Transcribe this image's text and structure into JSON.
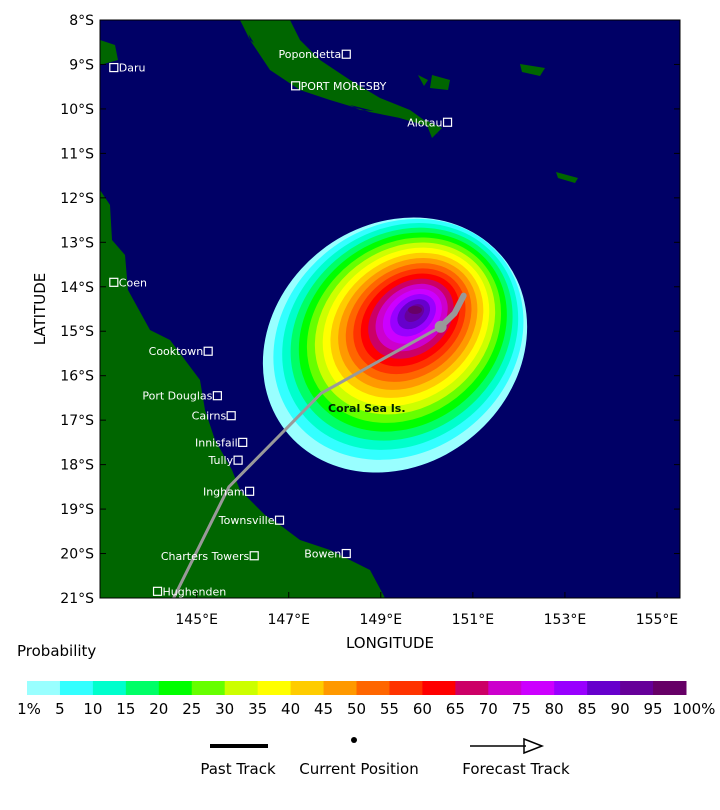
{
  "map": {
    "xlabel": "LONGITUDE",
    "ylabel": "LATITUDE",
    "lon_ticks": [
      "145°E",
      "147°E",
      "149°E",
      "151°E",
      "153°E",
      "155°E"
    ],
    "lon_values": [
      145,
      147,
      149,
      151,
      153,
      155
    ],
    "lat_ticks": [
      "8°S",
      "9°S",
      "10°S",
      "11°S",
      "12°S",
      "13°S",
      "14°S",
      "15°S",
      "16°S",
      "17°S",
      "18°S",
      "19°S",
      "20°S",
      "21°S"
    ],
    "lat_values": [
      8,
      9,
      10,
      11,
      12,
      13,
      14,
      15,
      16,
      17,
      18,
      19,
      20,
      21
    ],
    "lon_range": [
      142.9,
      155.5
    ],
    "lat_range": [
      8,
      21
    ],
    "ocean_color": "#000066",
    "land_color": "#006600",
    "places": [
      {
        "name": "Daru",
        "lon": 143.2,
        "lat": 9.07
      },
      {
        "name": "Popondetta",
        "lon": 148.25,
        "lat": 8.77
      },
      {
        "name": "PORT MORESBY",
        "lon": 147.15,
        "lat": 9.48
      },
      {
        "name": "Alotau",
        "lon": 150.45,
        "lat": 10.3
      },
      {
        "name": "Coen",
        "lon": 143.2,
        "lat": 13.9
      },
      {
        "name": "Cooktown",
        "lon": 145.25,
        "lat": 15.45
      },
      {
        "name": "Port Douglas",
        "lon": 145.45,
        "lat": 16.45
      },
      {
        "name": "Cairns",
        "lon": 145.75,
        "lat": 16.9
      },
      {
        "name": "Innisfail",
        "lon": 146.0,
        "lat": 17.5
      },
      {
        "name": "Tully",
        "lon": 145.9,
        "lat": 17.9
      },
      {
        "name": "Ingham",
        "lon": 146.15,
        "lat": 18.6
      },
      {
        "name": "Townsville",
        "lon": 146.8,
        "lat": 19.25
      },
      {
        "name": "Charters Towers",
        "lon": 146.25,
        "lat": 20.05
      },
      {
        "name": "Bowen",
        "lon": 148.25,
        "lat": 20.0
      },
      {
        "name": "Hughenden",
        "lon": 144.15,
        "lat": 20.85
      }
    ],
    "region_label": "Coral Sea Is.",
    "track": {
      "past": [
        [
          144.5,
          21
        ],
        [
          145.7,
          18.5
        ],
        [
          147.7,
          16.4
        ],
        [
          150.3,
          14.9
        ]
      ],
      "current": [
        150.3,
        14.9
      ],
      "forecast": [
        [
          150.3,
          14.9
        ],
        [
          150.6,
          14.6
        ],
        [
          150.8,
          14.2
        ]
      ],
      "color": "#999999"
    }
  },
  "legend": {
    "title": "Probability",
    "labels": [
      "1%",
      "5",
      "10",
      "15",
      "20",
      "25",
      "30",
      "35",
      "40",
      "45",
      "50",
      "55",
      "60",
      "65",
      "70",
      "75",
      "80",
      "85",
      "90",
      "95",
      "100%"
    ],
    "colors": [
      "#99ffff",
      "#33ffff",
      "#00ffcc",
      "#00ff66",
      "#00ff00",
      "#66ff00",
      "#ccff00",
      "#ffff00",
      "#ffcc00",
      "#ff9900",
      "#ff6600",
      "#ff3300",
      "#ff0000",
      "#cc0066",
      "#cc00cc",
      "#cc00ff",
      "#9900ff",
      "#6600cc",
      "#660099",
      "#660066"
    ],
    "past_track": "Past Track",
    "current_position": "Current Position",
    "forecast_track": "Forecast Track"
  }
}
